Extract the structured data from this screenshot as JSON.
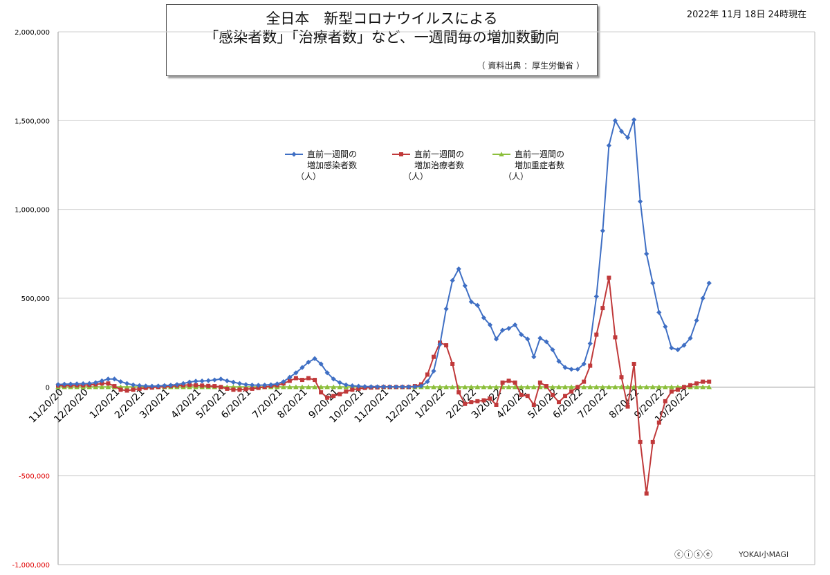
{
  "header": {
    "title_line1": "全日本　新型コロナウイルスによる",
    "title_line2": "「感染者数」「治療者数」など、一週間毎の増加数動向",
    "source": "（ 資料出典 ：厚生労働省 ）",
    "date": "2022年 11月 18日 24時現在"
  },
  "footer": {
    "license_icons": "ⓒⓘⓢⓔ",
    "logo_text": "YOKAI小MAGI"
  },
  "chart_data": {
    "type": "line",
    "ylim": [
      -1000000,
      2000000
    ],
    "yticks": [
      {
        "v": 2000000,
        "label": "2,000,000"
      },
      {
        "v": 1500000,
        "label": "1,500,000"
      },
      {
        "v": 1000000,
        "label": "1,000,000"
      },
      {
        "v": 500000,
        "label": "500,000"
      },
      {
        "v": 0,
        "label": "0"
      },
      {
        "v": -500000,
        "label": "-500,000"
      },
      {
        "v": -1000000,
        "label": "-1,000,000"
      }
    ],
    "x_labels": [
      {
        "i": 0,
        "label": "11/20/20"
      },
      {
        "i": 4,
        "label": "12/20/20"
      },
      {
        "i": 9,
        "label": "1/20/21"
      },
      {
        "i": 13,
        "label": "2/20/21"
      },
      {
        "i": 17,
        "label": "3/20/21"
      },
      {
        "i": 22,
        "label": "4/20/21"
      },
      {
        "i": 26,
        "label": "5/20/21"
      },
      {
        "i": 30,
        "label": "6/20/21"
      },
      {
        "i": 35,
        "label": "7/20/21"
      },
      {
        "i": 39,
        "label": "8/20/21"
      },
      {
        "i": 44,
        "label": "9/20/21"
      },
      {
        "i": 48,
        "label": "10/20/21"
      },
      {
        "i": 52,
        "label": "11/20/21"
      },
      {
        "i": 57,
        "label": "12/20/21"
      },
      {
        "i": 61,
        "label": "1/20/22"
      },
      {
        "i": 66,
        "label": "2/20/22"
      },
      {
        "i": 70,
        "label": "3/20/22"
      },
      {
        "i": 74,
        "label": "4/20/22"
      },
      {
        "i": 79,
        "label": "5/20/22"
      },
      {
        "i": 83,
        "label": "6/20/22"
      },
      {
        "i": 87,
        "label": "7/20/22"
      },
      {
        "i": 92,
        "label": "8/20/22"
      },
      {
        "i": 96,
        "label": "9/20/22"
      },
      {
        "i": 100,
        "label": "10/20/22"
      }
    ],
    "series": [
      {
        "name": "直前一週間の増加感染者数（人）",
        "color": "#3f6fc4",
        "marker": "diamond",
        "values": [
          14000,
          16000,
          17000,
          18000,
          19000,
          20000,
          25000,
          35000,
          45000,
          45000,
          30000,
          20000,
          12000,
          8000,
          6000,
          5000,
          6000,
          8000,
          10000,
          14000,
          20000,
          28000,
          33000,
          34000,
          36000,
          40000,
          45000,
          35000,
          27000,
          20000,
          14000,
          11000,
          10000,
          11000,
          13000,
          18000,
          30000,
          55000,
          80000,
          110000,
          140000,
          160000,
          130000,
          80000,
          45000,
          25000,
          12000,
          7000,
          5000,
          3000,
          2000,
          1500,
          1200,
          1000,
          1000,
          1000,
          1000,
          2000,
          5000,
          30000,
          90000,
          240000,
          440000,
          600000,
          665000,
          570000,
          480000,
          460000,
          390000,
          350000,
          270000,
          320000,
          330000,
          350000,
          295000,
          270000,
          170000,
          275000,
          255000,
          210000,
          145000,
          110000,
          100000,
          100000,
          130000,
          245000,
          510000,
          880000,
          1360000,
          1500000,
          1440000,
          1405000,
          1505000,
          1045000,
          750000,
          585000,
          420000,
          340000,
          220000,
          210000,
          235000,
          275000,
          375000,
          500000,
          585000
        ]
      },
      {
        "name": "直前一週間の増加治療者数（人）",
        "color": "#c0393a",
        "marker": "square",
        "values": [
          8000,
          8000,
          9000,
          10000,
          10000,
          12000,
          15000,
          20000,
          20000,
          5000,
          -15000,
          -20000,
          -15000,
          -10000,
          -5000,
          -3000,
          0,
          3000,
          5000,
          8000,
          10000,
          12000,
          10000,
          8000,
          6000,
          5000,
          0,
          -10000,
          -15000,
          -15000,
          -12000,
          -10000,
          -5000,
          0,
          5000,
          10000,
          20000,
          35000,
          50000,
          40000,
          50000,
          40000,
          -30000,
          -60000,
          -50000,
          -40000,
          -25000,
          -15000,
          -10000,
          -5000,
          -3000,
          -2000,
          0,
          0,
          0,
          0,
          0,
          5000,
          15000,
          70000,
          170000,
          250000,
          235000,
          130000,
          -30000,
          -95000,
          -85000,
          -80000,
          -75000,
          -65000,
          -100000,
          25000,
          35000,
          25000,
          -45000,
          -50000,
          -100000,
          25000,
          5000,
          -45000,
          -85000,
          -50000,
          -25000,
          0,
          30000,
          120000,
          295000,
          445000,
          615000,
          280000,
          55000,
          -110000,
          130000,
          -310000,
          -600000,
          -310000,
          -200000,
          -80000,
          -25000,
          -15000,
          0,
          10000,
          20000,
          30000,
          30000
        ]
      },
      {
        "name": "直前一週間の増加重症者数（人）",
        "color": "#8cbf3c",
        "marker": "triangle",
        "values": [
          0,
          0,
          0,
          0,
          0,
          0,
          0,
          0,
          0,
          0,
          0,
          0,
          0,
          0,
          0,
          0,
          0,
          0,
          0,
          0,
          0,
          0,
          0,
          0,
          0,
          0,
          0,
          0,
          0,
          0,
          0,
          0,
          0,
          0,
          0,
          0,
          0,
          0,
          0,
          0,
          0,
          0,
          0,
          0,
          0,
          0,
          0,
          0,
          0,
          0,
          0,
          0,
          0,
          0,
          0,
          0,
          0,
          0,
          0,
          0,
          0,
          0,
          0,
          0,
          0,
          0,
          0,
          0,
          0,
          0,
          0,
          0,
          0,
          0,
          0,
          0,
          0,
          0,
          0,
          0,
          0,
          0,
          0,
          0,
          0,
          0,
          0,
          0,
          0,
          0,
          0,
          0,
          0,
          0,
          0,
          0,
          0,
          0,
          0,
          0,
          0,
          0,
          0,
          0,
          0
        ]
      }
    ],
    "legend": {
      "placement": "top-center",
      "items": [
        {
          "line1": "直前一週間の",
          "line2": "増加感染者数",
          "line3": "（人）"
        },
        {
          "line1": "直前一週間の",
          "line2": "増加治療者数",
          "line3": "（人）"
        },
        {
          "line1": "直前一週間の",
          "line2": "増加重症者数",
          "line3": "（人）"
        }
      ]
    }
  }
}
